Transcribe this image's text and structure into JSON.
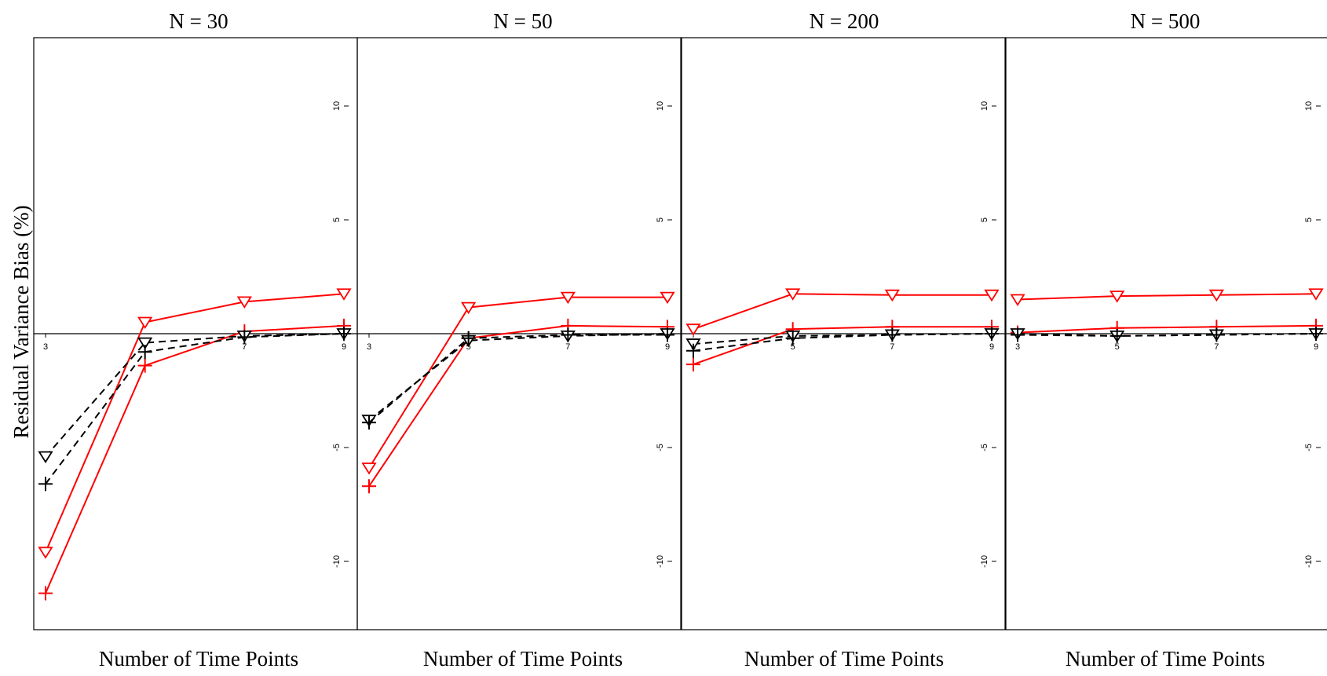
{
  "figure": {
    "ylabel": "Residual Variance Bias (%)",
    "colors": {
      "red": "#ff0000",
      "black": "#000000"
    }
  },
  "chart_data": [
    {
      "type": "line",
      "title": "N = 30",
      "xlabel": "Number of Time Points",
      "ylabel": "Residual Variance Bias (%)",
      "x": [
        3,
        5,
        7,
        9
      ],
      "xlim": [
        3,
        9
      ],
      "ylim": [
        -13,
        13
      ],
      "yticks": [
        -10,
        -5,
        5,
        10
      ],
      "xticks": [
        3,
        7,
        9
      ],
      "series": [
        {
          "color": "#ff0000",
          "dash": false,
          "marker": "triangle-down",
          "values": [
            -9.6,
            0.5,
            1.4,
            1.75
          ]
        },
        {
          "color": "#ff0000",
          "dash": false,
          "marker": "plus",
          "values": [
            -11.4,
            -1.4,
            0.1,
            0.35
          ]
        },
        {
          "color": "#000000",
          "dash": true,
          "marker": "triangle-down",
          "values": [
            -5.4,
            -0.4,
            -0.1,
            0.0
          ]
        },
        {
          "color": "#000000",
          "dash": true,
          "marker": "plus",
          "values": [
            -6.6,
            -0.8,
            -0.15,
            0.0
          ]
        }
      ]
    },
    {
      "type": "line",
      "title": "N = 50",
      "xlabel": "Number of Time Points",
      "ylabel": "",
      "x": [
        3,
        5,
        7,
        9
      ],
      "xlim": [
        3,
        9
      ],
      "ylim": [
        -13,
        13
      ],
      "yticks": [
        -10,
        -5,
        5,
        10
      ],
      "xticks": [
        3,
        5,
        7,
        9
      ],
      "series": [
        {
          "color": "#ff0000",
          "dash": false,
          "marker": "triangle-down",
          "values": [
            -5.9,
            1.15,
            1.6,
            1.6
          ]
        },
        {
          "color": "#ff0000",
          "dash": false,
          "marker": "plus",
          "values": [
            -6.7,
            -0.2,
            0.35,
            0.3
          ]
        },
        {
          "color": "#000000",
          "dash": true,
          "marker": "triangle-down",
          "values": [
            -3.8,
            -0.3,
            -0.1,
            0.0
          ]
        },
        {
          "color": "#000000",
          "dash": true,
          "marker": "plus",
          "values": [
            -3.9,
            -0.2,
            -0.05,
            -0.05
          ]
        }
      ]
    },
    {
      "type": "line",
      "title": "N = 200",
      "xlabel": "Number of Time Points",
      "ylabel": "",
      "x": [
        3,
        5,
        7,
        9
      ],
      "xlim": [
        3,
        9
      ],
      "ylim": [
        -13,
        13
      ],
      "yticks": [
        -10,
        -5,
        5,
        10
      ],
      "xticks": [
        3,
        5,
        7,
        9
      ],
      "series": [
        {
          "color": "#ff0000",
          "dash": false,
          "marker": "triangle-down",
          "values": [
            0.2,
            1.75,
            1.7,
            1.7
          ]
        },
        {
          "color": "#ff0000",
          "dash": false,
          "marker": "plus",
          "values": [
            -1.35,
            0.2,
            0.3,
            0.3
          ]
        },
        {
          "color": "#000000",
          "dash": true,
          "marker": "triangle-down",
          "values": [
            -0.45,
            -0.1,
            -0.05,
            0.0
          ]
        },
        {
          "color": "#000000",
          "dash": true,
          "marker": "plus",
          "values": [
            -0.75,
            -0.2,
            -0.05,
            0.0
          ]
        }
      ]
    },
    {
      "type": "line",
      "title": "N = 500",
      "xlabel": "Number of Time Points",
      "ylabel": "",
      "x": [
        3,
        5,
        7,
        9
      ],
      "xlim": [
        3,
        9
      ],
      "ylim": [
        -13,
        13
      ],
      "yticks": [
        -10,
        -5,
        5,
        10
      ],
      "xticks": [
        3,
        5,
        7,
        9
      ],
      "series": [
        {
          "color": "#ff0000",
          "dash": false,
          "marker": "triangle-down",
          "values": [
            1.5,
            1.65,
            1.7,
            1.75
          ]
        },
        {
          "color": "#ff0000",
          "dash": false,
          "marker": "plus",
          "values": [
            0.05,
            0.25,
            0.3,
            0.35
          ]
        },
        {
          "color": "#000000",
          "dash": true,
          "marker": "triangle-down",
          "values": [
            0.0,
            -0.1,
            -0.05,
            0.0
          ]
        },
        {
          "color": "#000000",
          "dash": true,
          "marker": "plus",
          "values": [
            -0.05,
            -0.1,
            -0.05,
            0.0
          ]
        }
      ]
    }
  ]
}
